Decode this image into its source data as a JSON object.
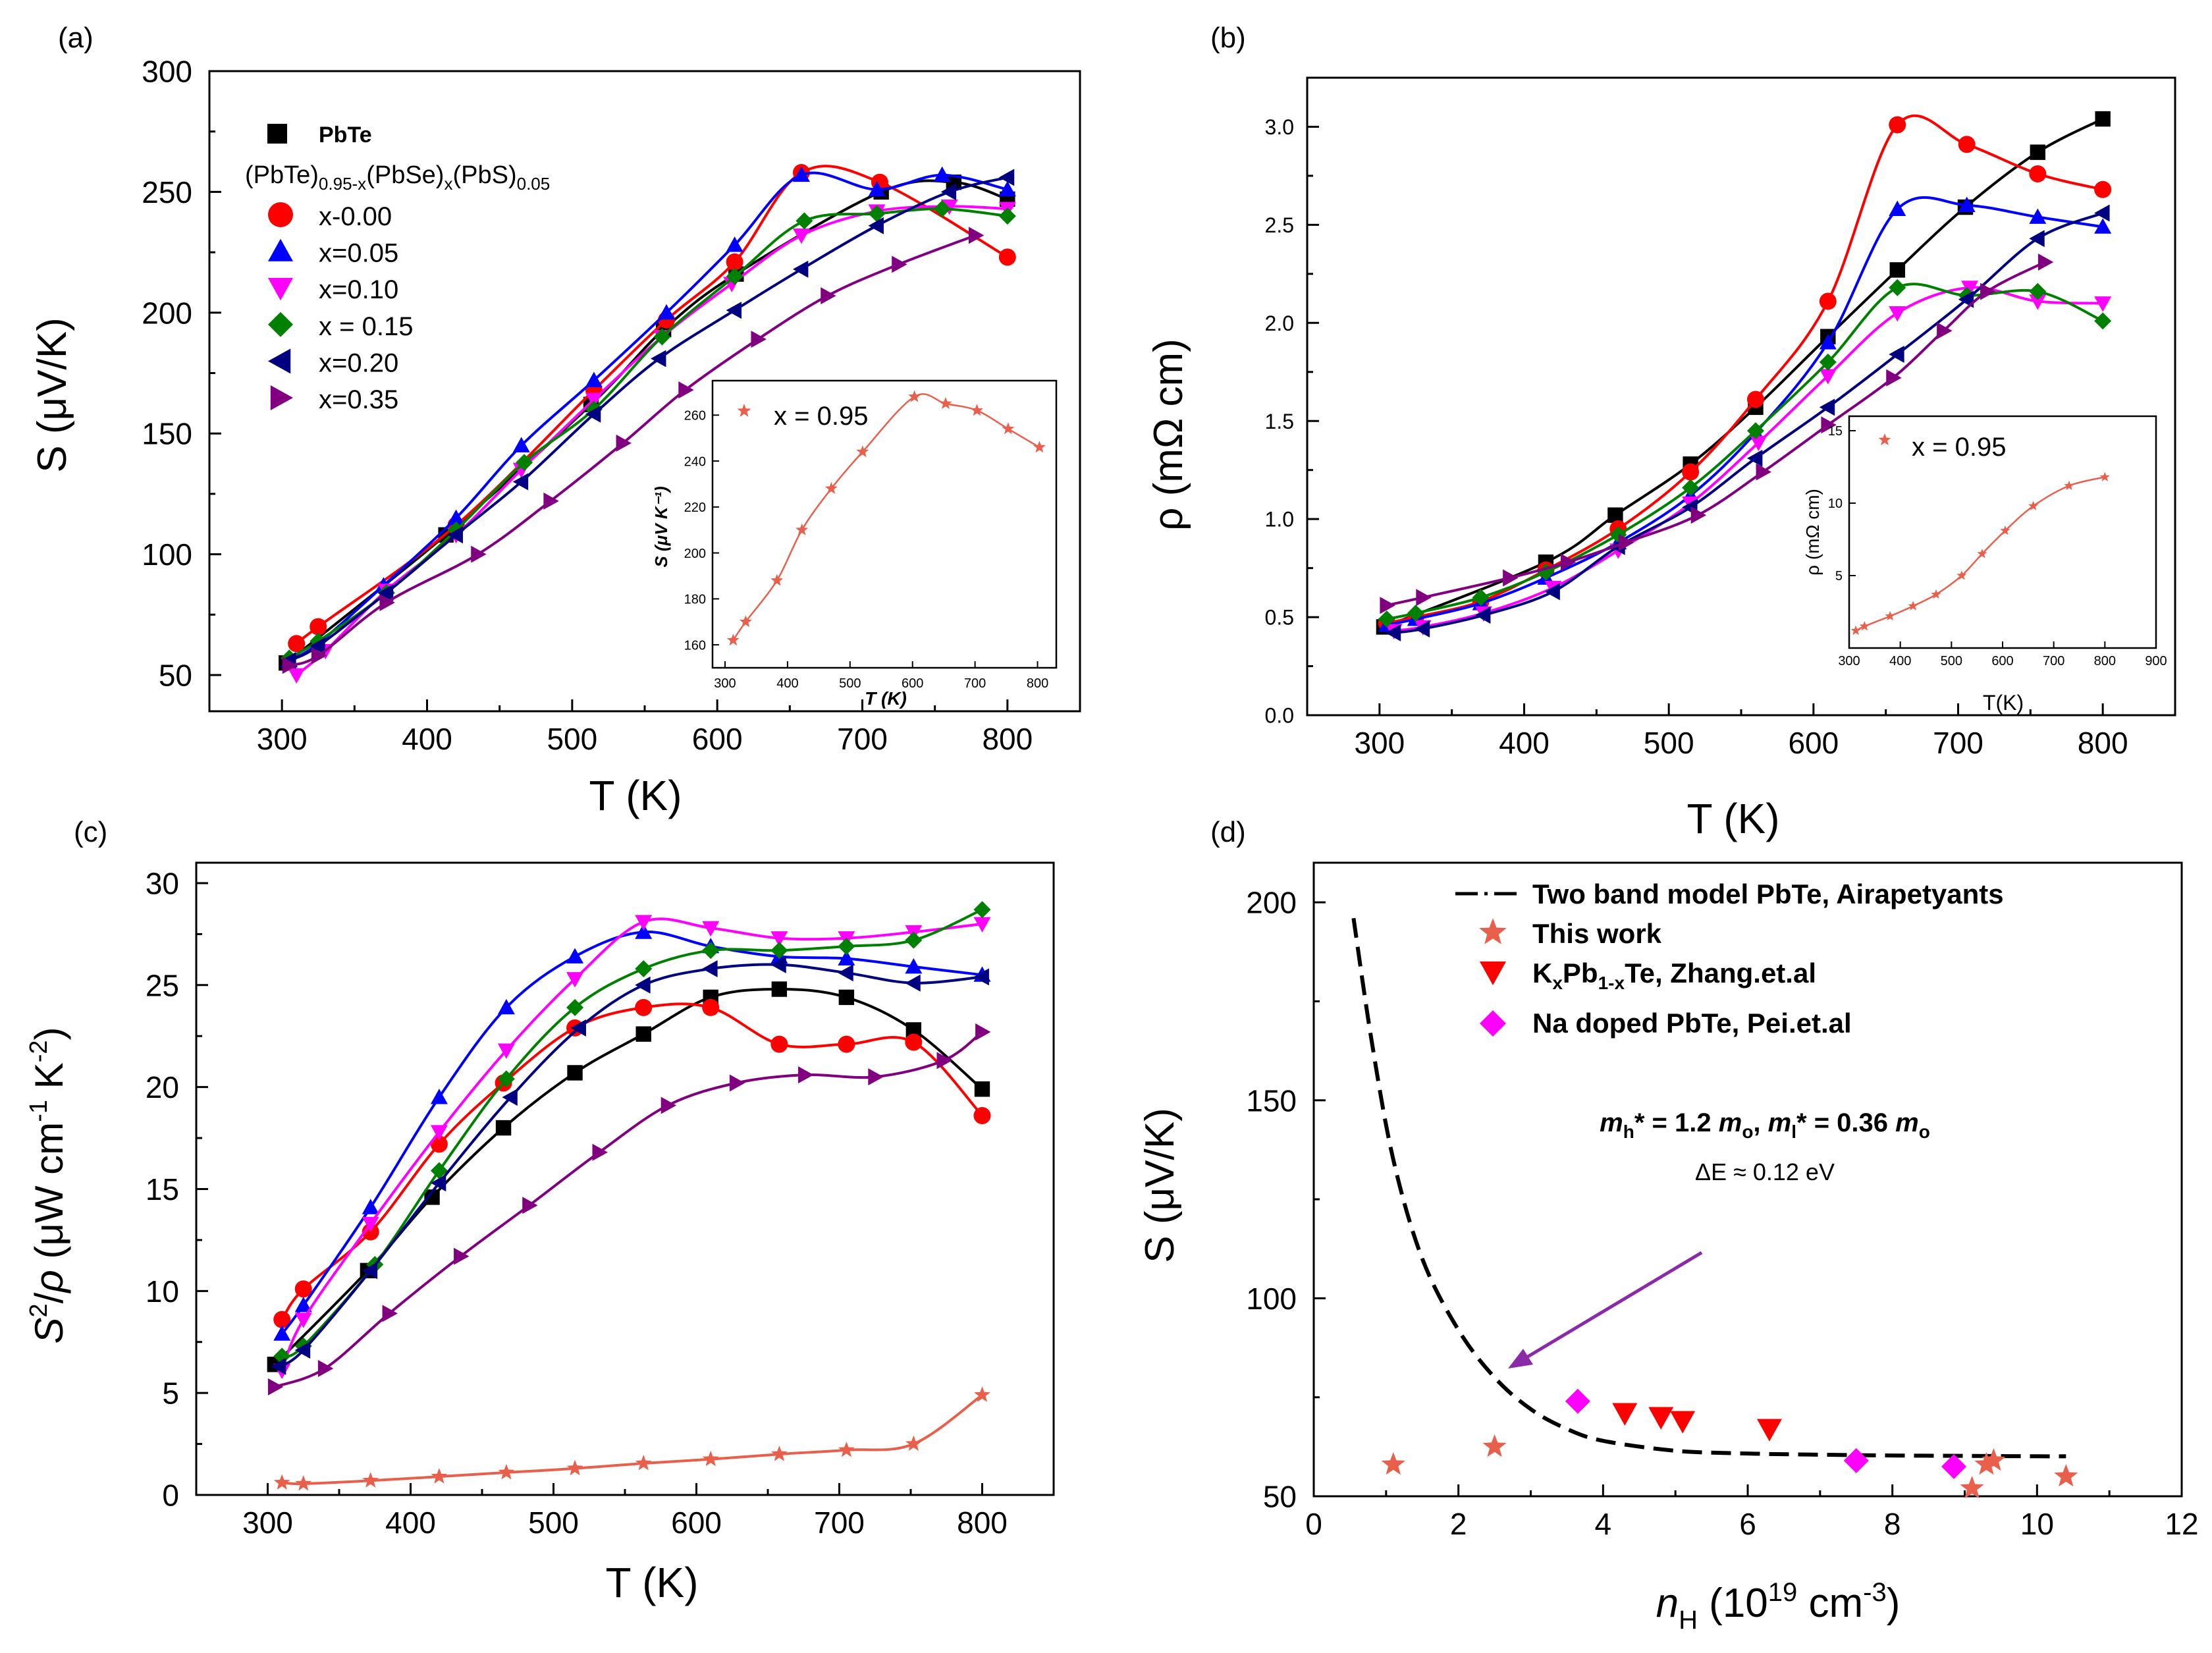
{
  "colors": {
    "PbTe": "#000000",
    "x000": "#ff0000",
    "x005": "#0000ff",
    "x010": "#ff00ff",
    "x015": "#008000",
    "x020": "#000080",
    "x035": "#800080",
    "x095": "#e8604c",
    "zhang": "#ff0000",
    "pei": "#ff00ff",
    "arrow": "#8b2aa8"
  },
  "chart_data": [
    {
      "panel": "(a)",
      "type": "line+scatter",
      "xlabel": "T (K)",
      "ylabel": "S (μV/K)",
      "xlim": [
        250,
        850
      ],
      "ylim": [
        35,
        300
      ],
      "xticks": [
        300,
        400,
        500,
        600,
        700,
        800
      ],
      "yticks": [
        50,
        100,
        150,
        200,
        250,
        300
      ],
      "legend_header": "(PbTe)0.95-x(PbSe)x(PbS)0.05",
      "series": [
        {
          "name": "PbTe",
          "marker": "square",
          "color": "#000000",
          "x": [
            303,
            413,
            513,
            563,
            613,
            713,
            763,
            800
          ],
          "y": [
            55,
            108,
            162,
            193,
            216,
            250,
            254,
            247
          ]
        },
        {
          "name": "x-0.00",
          "marker": "circle",
          "color": "#ff0000",
          "x": [
            310,
            325,
            420,
            515,
            565,
            612,
            658,
            712,
            800
          ],
          "y": [
            63,
            70,
            112,
            168,
            197,
            221,
            258,
            254,
            223
          ]
        },
        {
          "name": "x=0.05",
          "marker": "triangle-up",
          "color": "#0000ff",
          "x": [
            305,
            325,
            370,
            420,
            465,
            515,
            565,
            612,
            658,
            710,
            755,
            800
          ],
          "y": [
            56,
            63,
            87,
            115,
            145,
            172,
            200,
            228,
            257,
            251,
            257,
            251
          ]
        },
        {
          "name": "x=0.10",
          "marker": "triangle-down",
          "color": "#ff00ff",
          "x": [
            310,
            330,
            372,
            420,
            465,
            515,
            562,
            610,
            658,
            710,
            760,
            800
          ],
          "y": [
            50,
            60,
            85,
            108,
            135,
            164,
            190,
            212,
            232,
            242,
            244,
            243
          ]
        },
        {
          "name": "x = 0.15",
          "marker": "diamond",
          "color": "#008000",
          "x": [
            305,
            325,
            372,
            420,
            467,
            515,
            562,
            612,
            660,
            710,
            755,
            800
          ],
          "y": [
            57,
            64,
            84,
            110,
            138,
            160,
            190,
            215,
            238,
            241,
            243,
            240
          ]
        },
        {
          "name": "x=0.20",
          "marker": "triangle-left",
          "color": "#000080",
          "x": [
            305,
            325,
            372,
            420,
            465,
            515,
            560,
            612,
            658,
            710,
            760,
            800
          ],
          "y": [
            56,
            62,
            84,
            108,
            130,
            158,
            181,
            201,
            218,
            236,
            250,
            256
          ]
        },
        {
          "name": "x=0.35",
          "marker": "triangle-right",
          "color": "#800080",
          "x": [
            305,
            325,
            372,
            435,
            485,
            535,
            578,
            628,
            676,
            725,
            778
          ],
          "y": [
            54,
            58,
            80,
            100,
            122,
            146,
            168,
            189,
            207,
            220,
            232
          ]
        }
      ],
      "inset": {
        "label": "x = 0.95",
        "xlabel": "T (K)",
        "ylabel": "S (μV K⁻¹)",
        "xlim": [
          280,
          830
        ],
        "ylim": [
          150,
          275
        ],
        "xticks": [
          300,
          400,
          500,
          600,
          700,
          800
        ],
        "yticks": [
          160,
          180,
          200,
          220,
          240,
          260
        ],
        "x": [
          313,
          333,
          383,
          423,
          470,
          520,
          603,
          653,
          703,
          753,
          803
        ],
        "y": [
          162,
          170,
          188,
          210,
          228,
          244,
          268,
          265,
          262,
          254,
          246
        ]
      }
    },
    {
      "panel": "(b)",
      "type": "line+scatter",
      "xlabel": "T (K)",
      "ylabel": "ρ (mΩ cm)",
      "xlim": [
        250,
        850
      ],
      "ylim": [
        0,
        3.25
      ],
      "xticks": [
        300,
        400,
        500,
        600,
        700,
        800
      ],
      "yticks": [
        0.0,
        0.5,
        1.0,
        1.5,
        2.0,
        2.5,
        3.0
      ],
      "series": [
        {
          "name": "PbTe",
          "marker": "square",
          "color": "#000000",
          "x": [
            303,
            415,
            463,
            515,
            560,
            610,
            658,
            705,
            755,
            800
          ],
          "y": [
            0.45,
            0.78,
            1.02,
            1.28,
            1.57,
            1.93,
            2.27,
            2.59,
            2.87,
            3.04
          ]
        },
        {
          "name": "x-0.00",
          "marker": "circle",
          "color": "#ff0000",
          "x": [
            305,
            325,
            370,
            415,
            465,
            515,
            560,
            610,
            658,
            706,
            755,
            800
          ],
          "y": [
            0.47,
            0.5,
            0.58,
            0.74,
            0.95,
            1.24,
            1.61,
            2.11,
            3.01,
            2.91,
            2.76,
            2.68
          ]
        },
        {
          "name": "x=0.05",
          "marker": "triangle-up",
          "color": "#0000ff",
          "x": [
            305,
            325,
            370,
            415,
            465,
            515,
            560,
            610,
            658,
            706,
            755,
            800
          ],
          "y": [
            0.46,
            0.49,
            0.57,
            0.7,
            0.88,
            1.12,
            1.44,
            1.9,
            2.58,
            2.6,
            2.54,
            2.49
          ]
        },
        {
          "name": "x=0.10",
          "marker": "triangle-down",
          "color": "#ff00ff",
          "x": [
            310,
            330,
            372,
            420,
            465,
            515,
            562,
            610,
            658,
            708,
            755,
            800
          ],
          "y": [
            0.43,
            0.45,
            0.52,
            0.65,
            0.84,
            1.08,
            1.39,
            1.73,
            2.05,
            2.18,
            2.11,
            2.1
          ]
        },
        {
          "name": "x = 0.15",
          "marker": "diamond",
          "color": "#008000",
          "x": [
            305,
            325,
            370,
            415,
            465,
            515,
            560,
            610,
            658,
            706,
            755,
            800
          ],
          "y": [
            0.49,
            0.52,
            0.6,
            0.73,
            0.92,
            1.16,
            1.45,
            1.8,
            2.18,
            2.14,
            2.16,
            2.01
          ]
        },
        {
          "name": "x=0.20",
          "marker": "triangle-left",
          "color": "#000080",
          "x": [
            310,
            330,
            372,
            420,
            465,
            515,
            560,
            610,
            658,
            706,
            755,
            800
          ],
          "y": [
            0.42,
            0.44,
            0.51,
            0.63,
            0.86,
            1.06,
            1.31,
            1.57,
            1.84,
            2.12,
            2.43,
            2.56
          ]
        },
        {
          "name": "x=0.35",
          "marker": "triangle-right",
          "color": "#800080",
          "x": [
            305,
            330,
            390,
            430,
            470,
            520,
            565,
            610,
            655,
            690,
            720,
            760
          ],
          "y": [
            0.56,
            0.6,
            0.7,
            0.78,
            0.88,
            1.02,
            1.24,
            1.48,
            1.72,
            1.96,
            2.16,
            2.31
          ]
        }
      ],
      "inset": {
        "label": "x = 0.95",
        "xlabel": "T(K)",
        "ylabel": "ρ (mΩ cm)",
        "xlim": [
          300,
          900
        ],
        "ylim": [
          0,
          16
        ],
        "xticks": [
          300,
          400,
          500,
          600,
          700,
          800,
          900
        ],
        "yticks": [
          5,
          10,
          15
        ],
        "x": [
          313,
          330,
          380,
          425,
          470,
          520,
          560,
          605,
          660,
          730,
          800
        ],
        "y": [
          1.2,
          1.5,
          2.2,
          2.9,
          3.7,
          5.0,
          6.5,
          8.1,
          9.8,
          11.2,
          11.8
        ]
      }
    },
    {
      "panel": "(c)",
      "type": "line+scatter",
      "xlabel": "T (K)",
      "ylabel": "S²/ρ (μW cm⁻¹ K⁻²)",
      "xlim": [
        250,
        850
      ],
      "ylim": [
        0,
        31
      ],
      "xticks": [
        300,
        400,
        500,
        600,
        700,
        800
      ],
      "yticks": [
        0,
        5,
        10,
        15,
        20,
        25,
        30
      ],
      "series": [
        {
          "name": "PbTe",
          "marker": "square",
          "color": "#000000",
          "x": [
            305,
            370,
            415,
            465,
            515,
            563,
            610,
            658,
            705,
            752,
            800
          ],
          "y": [
            6.4,
            11.0,
            14.6,
            18.0,
            20.7,
            22.6,
            24.4,
            24.8,
            24.4,
            22.8,
            19.9
          ]
        },
        {
          "name": "x-0.00",
          "marker": "circle",
          "color": "#ff0000",
          "x": [
            310,
            325,
            372,
            420,
            465,
            515,
            563,
            610,
            658,
            705,
            752,
            800
          ],
          "y": [
            8.6,
            10.1,
            12.9,
            17.2,
            20.2,
            22.9,
            23.9,
            23.9,
            22.1,
            22.1,
            22.2,
            18.6
          ]
        },
        {
          "name": "x=0.05",
          "marker": "triangle-up",
          "color": "#0000ff",
          "x": [
            310,
            325,
            372,
            420,
            467,
            515,
            563,
            610,
            658,
            705,
            752,
            800
          ],
          "y": [
            7.9,
            9.3,
            14.1,
            19.5,
            23.9,
            26.4,
            27.6,
            26.9,
            26.4,
            26.3,
            25.9,
            25.5
          ]
        },
        {
          "name": "x=0.10",
          "marker": "triangle-down",
          "color": "#ff00ff",
          "x": [
            310,
            325,
            372,
            420,
            467,
            515,
            563,
            610,
            658,
            705,
            752,
            800
          ],
          "y": [
            6.1,
            8.6,
            13.3,
            17.8,
            21.8,
            25.3,
            28.1,
            27.8,
            27.3,
            27.3,
            27.6,
            28.0
          ]
        },
        {
          "name": "x = 0.15",
          "marker": "diamond",
          "color": "#008000",
          "x": [
            310,
            325,
            375,
            420,
            467,
            515,
            563,
            610,
            658,
            705,
            752,
            800
          ],
          "y": [
            6.8,
            7.3,
            11.3,
            15.9,
            20.4,
            23.9,
            25.8,
            26.7,
            26.7,
            26.9,
            27.2,
            28.7
          ]
        },
        {
          "name": "x=0.20",
          "marker": "triangle-left",
          "color": "#000080",
          "x": [
            308,
            325,
            372,
            420,
            470,
            518,
            563,
            610,
            658,
            705,
            752,
            800
          ],
          "y": [
            6.3,
            7.1,
            11.0,
            15.3,
            19.5,
            22.9,
            25.0,
            25.8,
            26.0,
            25.6,
            25.1,
            25.4
          ]
        },
        {
          "name": "x=0.35",
          "marker": "triangle-right",
          "color": "#800080",
          "x": [
            305,
            340,
            385,
            435,
            483,
            532,
            580,
            628,
            676,
            725,
            773,
            800
          ],
          "y": [
            5.3,
            6.2,
            8.9,
            11.7,
            14.2,
            16.8,
            19.1,
            20.2,
            20.6,
            20.5,
            21.3,
            22.7
          ]
        },
        {
          "name": "x = 0.95",
          "marker": "star",
          "color": "#e8604c",
          "x": [
            310,
            325,
            372,
            420,
            467,
            515,
            563,
            610,
            658,
            705,
            752,
            800
          ],
          "y": [
            0.6,
            0.55,
            0.7,
            0.9,
            1.1,
            1.3,
            1.55,
            1.75,
            2.0,
            2.2,
            2.5,
            4.9
          ]
        }
      ]
    },
    {
      "panel": "(d)",
      "type": "line+scatter",
      "xlabel": "nH (10¹⁹ cm⁻³)",
      "ylabel": "S (μV/K)",
      "xlim": [
        0,
        12
      ],
      "ylim": [
        50,
        210
      ],
      "xticks": [
        0,
        2,
        4,
        6,
        8,
        10,
        12
      ],
      "yticks": [
        50,
        100,
        150,
        200
      ],
      "annotation_mass": "mh* = 1.2 mo, ml* = 0.36 mo",
      "annotation_gap": "ΔE ≈ 0.12 eV",
      "series": [
        {
          "name": "Two band model PbTe, Airapetyants",
          "style": "dashed",
          "color": "#000000",
          "x": [
            0.55,
            0.8,
            1.1,
            1.5,
            2.0,
            2.5,
            3.0,
            3.5,
            4.0,
            5.0,
            6.0,
            7.0,
            8.0,
            9.0,
            10.0,
            10.4
          ],
          "y": [
            196,
            165,
            135,
            110,
            92,
            80,
            72,
            67,
            64,
            61.5,
            60.8,
            60.5,
            60.3,
            60.2,
            60.1,
            60.1
          ]
        },
        {
          "name": "This work",
          "marker": "star",
          "color": "#e8604c",
          "x": [
            1.1,
            2.5,
            9.1,
            9.3,
            9.4,
            10.4
          ],
          "y": [
            58,
            62.5,
            52,
            58,
            59,
            55
          ]
        },
        {
          "name": "KxPb1-xTe, Zhang.et.al",
          "marker": "triangle-down",
          "color": "#ff0000",
          "x": [
            4.3,
            4.8,
            5.1,
            6.3
          ],
          "y": [
            71,
            70,
            69,
            67
          ]
        },
        {
          "name": "Na doped PbTe, Pei.et.al",
          "marker": "diamond",
          "color": "#ff00ff",
          "x": [
            3.65,
            7.5,
            8.85
          ],
          "y": [
            74,
            59,
            57.5
          ]
        }
      ]
    }
  ]
}
